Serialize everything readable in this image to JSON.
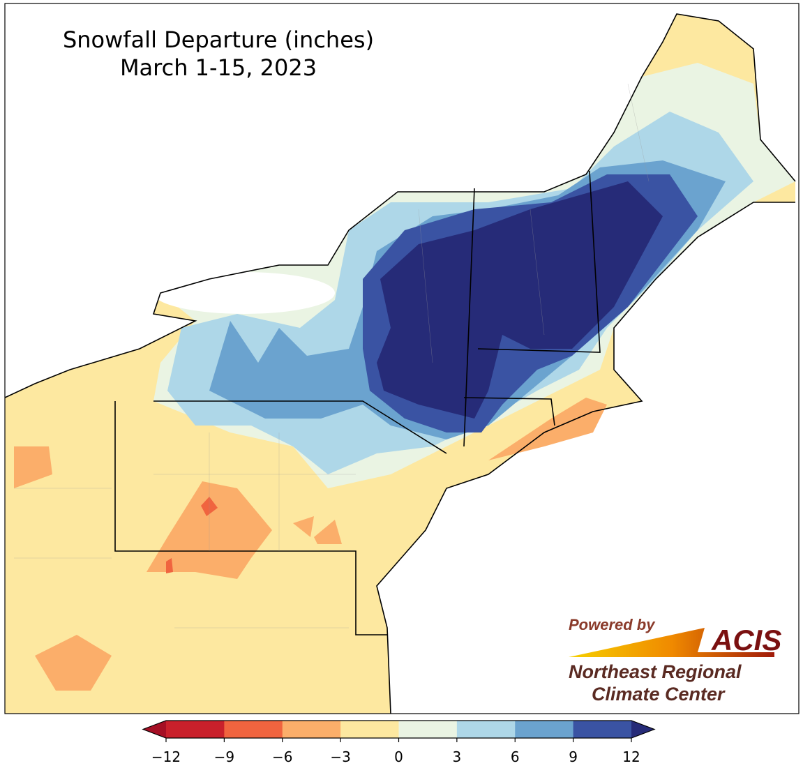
{
  "title": [
    "Snowfall Departure (inches)",
    "March 1-15, 2023"
  ],
  "colorbar": {
    "ticks": [
      {
        "value": -12,
        "label": "−12"
      },
      {
        "value": -9,
        "label": "−9"
      },
      {
        "value": -6,
        "label": "−6"
      },
      {
        "value": -3,
        "label": "−3"
      },
      0,
      3,
      6,
      9,
      12
    ],
    "colors": [
      "#c9202b",
      "#f0643f",
      "#fbae6a",
      "#fde8a0",
      "#eaf4e3",
      "#aed7e8",
      "#6ba3cf",
      "#3a53a3"
    ],
    "under_color": "#a50f24",
    "over_color": "#262b78"
  },
  "logo": {
    "powered": "Powered by",
    "brand": "ACIS",
    "line1": "Northeast Regional",
    "line2": "Climate Center"
  }
}
